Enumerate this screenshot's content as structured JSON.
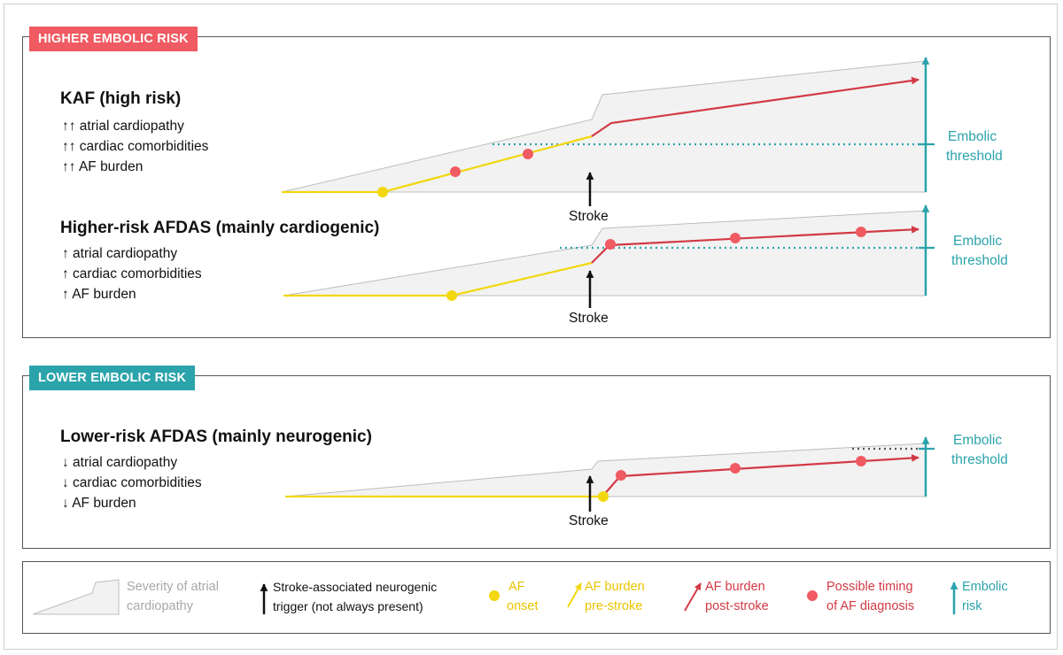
{
  "colors": {
    "red": "#f05a62",
    "dark_red": "#d23a45",
    "teal": "#2ba3ab",
    "yellow": "#f2d70e",
    "gray_fill": "#f2f2f2",
    "gray_text": "#a8a8a8"
  },
  "higher": {
    "tag": "HIGHER EMBOLIC RISK",
    "kaf": {
      "title": "KAF (high risk)",
      "features": [
        "↑↑ atrial cardiopathy",
        "↑↑ cardiac comorbidities",
        "↑↑ AF burden"
      ],
      "stroke": "Stroke",
      "embolic_line1": "Embolic",
      "embolic_line2": "threshold"
    },
    "afdas": {
      "title": "Higher-risk AFDAS (mainly cardiogenic)",
      "features": [
        "↑ atrial cardiopathy",
        "↑ cardiac comorbidities",
        "↑ AF burden"
      ],
      "stroke": "Stroke",
      "embolic_line1": "Embolic",
      "embolic_line2": "threshold"
    }
  },
  "lower": {
    "tag": "LOWER EMBOLIC RISK",
    "afdas": {
      "title": "Lower-risk AFDAS (mainly neurogenic)",
      "features": [
        "↓ atrial cardiopathy",
        "↓ cardiac comorbidities",
        "↓ AF burden"
      ],
      "stroke": "Stroke",
      "embolic_line1": "Embolic",
      "embolic_line2": "threshold"
    }
  },
  "legend": {
    "severity": [
      "Severity of atrial",
      "cardiopathy"
    ],
    "trigger": [
      "Stroke-associated neurogenic",
      "trigger (not always present)"
    ],
    "af_onset": [
      "AF",
      "onset"
    ],
    "pre": [
      "AF burden",
      "pre-stroke"
    ],
    "post": [
      "AF burden",
      "post-stroke"
    ],
    "diag": [
      "Possible timing",
      "of AF diagnosis"
    ],
    "embolic": [
      "Embolic",
      "risk"
    ]
  }
}
